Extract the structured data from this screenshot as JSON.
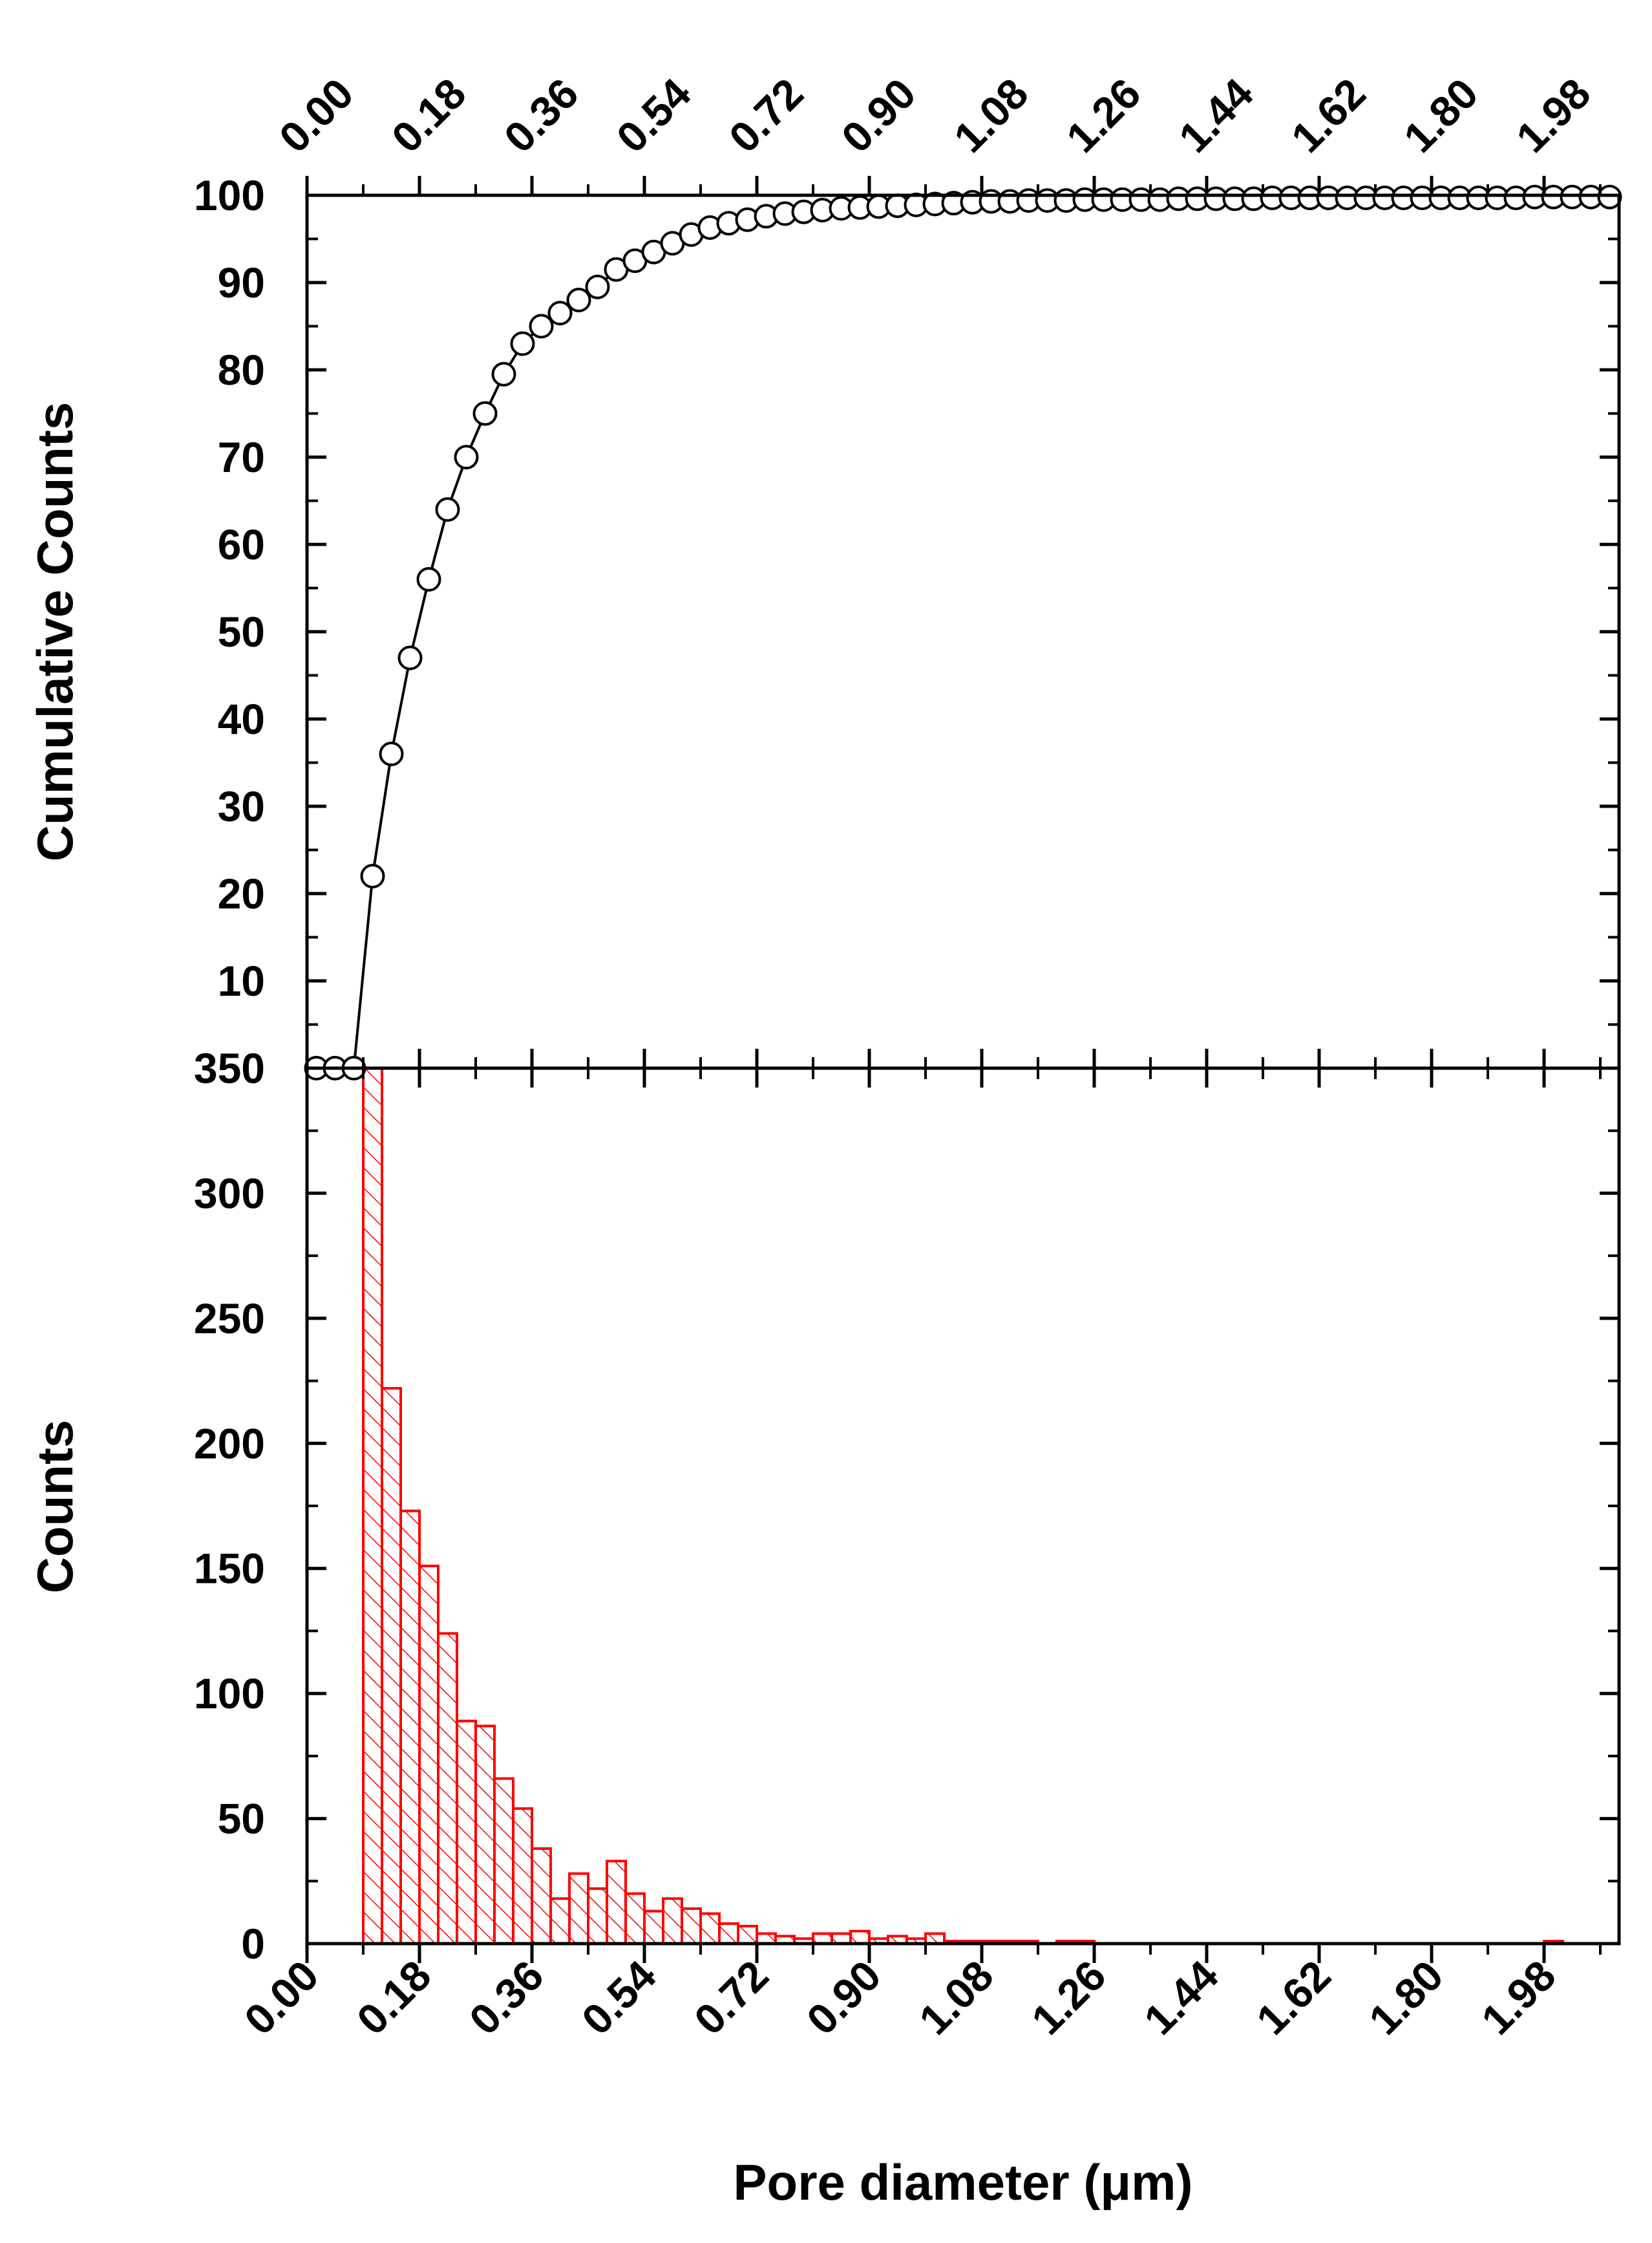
{
  "chart_data": [
    {
      "type": "scatter",
      "panel": "top",
      "ylabel": "Cumulative Counts",
      "xlim": [
        0.0,
        2.1
      ],
      "ylim": [
        0,
        100
      ],
      "x_tick_labels": [
        "0.00",
        "0.18",
        "0.36",
        "0.54",
        "0.72",
        "0.90",
        "1.08",
        "1.26",
        "1.44",
        "1.62",
        "1.80",
        "1.98"
      ],
      "y_tick_labels": [
        "10",
        "20",
        "30",
        "40",
        "50",
        "60",
        "70",
        "80",
        "90",
        "100"
      ],
      "marker": "open-circle",
      "line": "solid",
      "series": [
        {
          "x": [
            0.015,
            0.045,
            0.075,
            0.105,
            0.135,
            0.165,
            0.195,
            0.225,
            0.255,
            0.285,
            0.315,
            0.345,
            0.375,
            0.405,
            0.435,
            0.465,
            0.495,
            0.525,
            0.555,
            0.585,
            0.615,
            0.645,
            0.675,
            0.705,
            0.735,
            0.765,
            0.795,
            0.825,
            0.855,
            0.885,
            0.915,
            0.945,
            0.975,
            1.005,
            1.035,
            1.065,
            1.095,
            1.125,
            1.155,
            1.185,
            1.215,
            1.245,
            1.275,
            1.305,
            1.335,
            1.365,
            1.395,
            1.425,
            1.455,
            1.485,
            1.515,
            1.545,
            1.575,
            1.605,
            1.635,
            1.665,
            1.695,
            1.725,
            1.755,
            1.785,
            1.815,
            1.845,
            1.875,
            1.905,
            1.935,
            1.965,
            1.995,
            2.025,
            2.055,
            2.085
          ],
          "y": [
            0,
            0,
            0,
            22,
            36,
            47,
            56,
            64,
            70,
            75,
            79.5,
            83,
            85,
            86.5,
            88,
            89.5,
            91.5,
            92.5,
            93.5,
            94.5,
            95.5,
            96.3,
            96.8,
            97.2,
            97.6,
            97.9,
            98.1,
            98.3,
            98.5,
            98.6,
            98.7,
            98.8,
            98.9,
            99.0,
            99.1,
            99.2,
            99.3,
            99.3,
            99.4,
            99.4,
            99.4,
            99.5,
            99.5,
            99.5,
            99.5,
            99.5,
            99.6,
            99.6,
            99.6,
            99.6,
            99.6,
            99.7,
            99.7,
            99.7,
            99.7,
            99.7,
            99.7,
            99.7,
            99.7,
            99.7,
            99.7,
            99.7,
            99.7,
            99.7,
            99.7,
            99.8,
            99.8,
            99.8,
            99.8,
            99.8
          ]
        }
      ]
    },
    {
      "type": "bar",
      "panel": "bottom",
      "xlabel": "Pore diameter (μm)",
      "ylabel": "Counts",
      "xlim": [
        0.0,
        2.1
      ],
      "ylim": [
        0,
        350
      ],
      "x_tick_labels": [
        "0.00",
        "0.18",
        "0.36",
        "0.54",
        "0.72",
        "0.90",
        "1.08",
        "1.26",
        "1.44",
        "1.62",
        "1.80",
        "1.98"
      ],
      "y_tick_labels": [
        "0",
        "50",
        "100",
        "150",
        "200",
        "250",
        "300",
        "350"
      ],
      "bin_width": 0.03,
      "bar_color": "#ff0000",
      "fill": "hatched",
      "bins_start": [
        0.09,
        0.12,
        0.15,
        0.18,
        0.21,
        0.24,
        0.27,
        0.3,
        0.33,
        0.36,
        0.39,
        0.42,
        0.45,
        0.48,
        0.51,
        0.54,
        0.57,
        0.6,
        0.63,
        0.66,
        0.69,
        0.72,
        0.75,
        0.78,
        0.81,
        0.84,
        0.87,
        0.9,
        0.93,
        0.96,
        0.99,
        1.02,
        1.05,
        1.08,
        1.11,
        1.14,
        1.17,
        1.2,
        1.23,
        1.26,
        1.98
      ],
      "values": [
        350,
        222,
        173,
        151,
        124,
        89,
        87,
        66,
        54,
        38,
        18,
        28,
        22,
        33,
        20,
        13,
        18,
        14,
        12,
        8,
        7,
        4,
        3,
        2,
        4,
        4,
        5,
        2,
        3,
        2,
        4,
        1,
        1,
        1,
        1,
        1,
        0,
        1,
        1,
        0,
        1
      ]
    }
  ]
}
